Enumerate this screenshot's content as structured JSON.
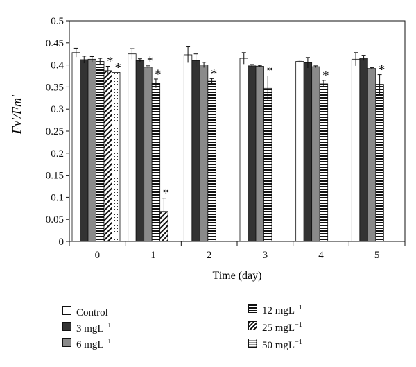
{
  "chart_data": {
    "type": "bar",
    "title": "",
    "xlabel": "Time (day)",
    "ylabel": "Fv′/Fm′",
    "ylim": [
      0,
      0.5
    ],
    "yticks": [
      "0",
      "0.05",
      "0.1",
      "0.15",
      "0.2",
      "0.25",
      "0.3",
      "0.35",
      "0.4",
      "0.45",
      "0.5"
    ],
    "categories": [
      "0",
      "1",
      "2",
      "3",
      "4",
      "5"
    ],
    "grid": false,
    "legend_position": "bottom",
    "series": [
      {
        "name": "Control",
        "pattern": "white",
        "values": [
          0.428,
          0.425,
          0.423,
          0.415,
          0.408,
          0.413
        ],
        "errors": [
          0.01,
          0.012,
          0.018,
          0.013,
          0.003,
          0.015
        ],
        "significant": [
          false,
          false,
          false,
          false,
          false,
          false
        ]
      },
      {
        "name": "3 mgL−1",
        "pattern": "dark",
        "values": [
          0.412,
          0.41,
          0.41,
          0.398,
          0.405,
          0.416
        ],
        "errors": [
          0.008,
          0.004,
          0.015,
          0.003,
          0.012,
          0.006
        ],
        "significant": [
          false,
          false,
          false,
          false,
          false,
          false
        ]
      },
      {
        "name": "6 mgL−1",
        "pattern": "gray",
        "values": [
          0.413,
          0.395,
          0.4,
          0.397,
          0.396,
          0.392
        ],
        "errors": [
          0.006,
          0.003,
          0.006,
          0.002,
          0.002,
          0.002
        ],
        "significant": [
          false,
          true,
          false,
          false,
          false,
          false
        ]
      },
      {
        "name": "12 mgL−1",
        "pattern": "horizontal",
        "values": [
          0.408,
          0.358,
          0.363,
          0.347,
          0.357,
          0.356
        ],
        "errors": [
          0.007,
          0.01,
          0.006,
          0.028,
          0.008,
          0.022
        ],
        "significant": [
          false,
          true,
          true,
          true,
          true,
          true
        ]
      },
      {
        "name": "25 mgL−1",
        "pattern": "diagonal",
        "values": [
          0.387,
          0.068,
          null,
          null,
          null,
          null
        ],
        "errors": [
          0.01,
          0.03,
          null,
          null,
          null,
          null
        ],
        "significant": [
          true,
          true,
          false,
          false,
          false,
          false
        ]
      },
      {
        "name": "50 mgL−1",
        "pattern": "dotted",
        "values": [
          0.383,
          null,
          null,
          null,
          null,
          null
        ],
        "errors": [
          0.0,
          null,
          null,
          null,
          null,
          null
        ],
        "significant": [
          true,
          false,
          false,
          false,
          false,
          false
        ]
      }
    ],
    "significance_marker": "*"
  },
  "legend": {
    "items": [
      {
        "label": "Control",
        "unit_sup": ""
      },
      {
        "label": "3 mgL",
        "unit_sup": "−1"
      },
      {
        "label": "6 mgL",
        "unit_sup": "−1"
      },
      {
        "label": "12 mgL",
        "unit_sup": "−1"
      },
      {
        "label": "25 mgL",
        "unit_sup": "−1"
      },
      {
        "label": "50 mgL",
        "unit_sup": "−1"
      }
    ]
  }
}
